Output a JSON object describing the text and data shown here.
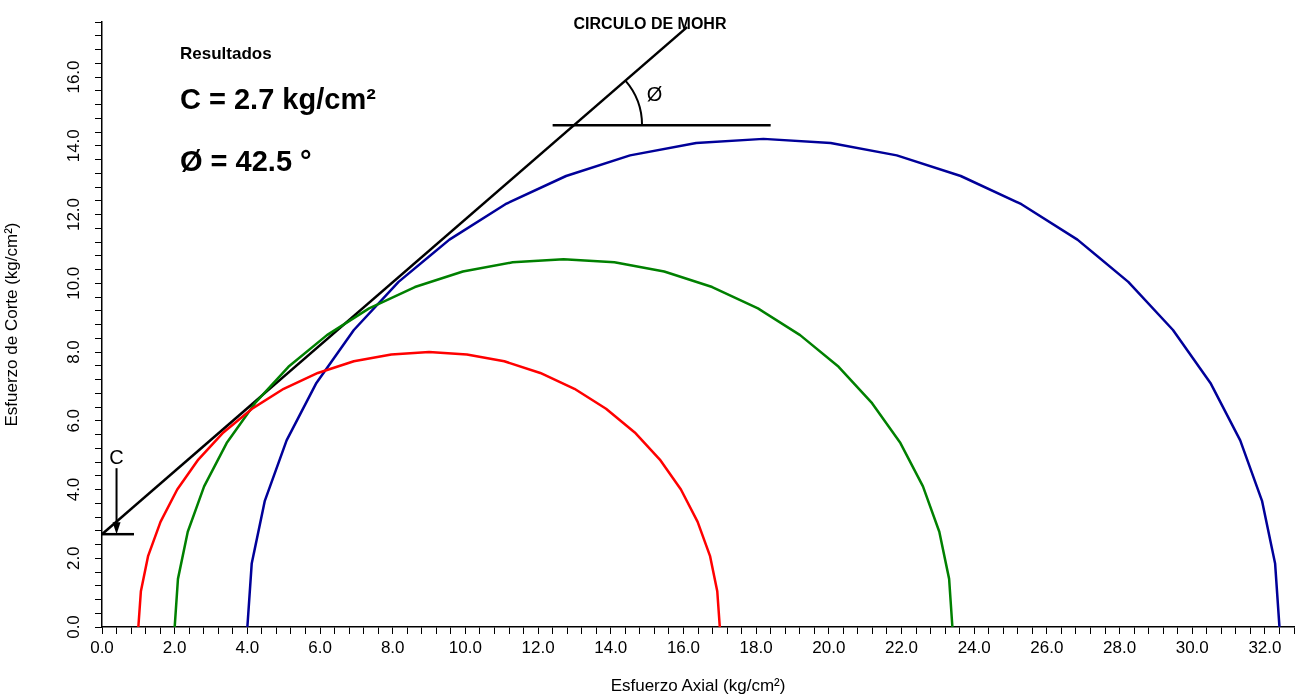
{
  "chart_data": {
    "type": "line",
    "title": "CIRCULO DE MOHR",
    "xlabel": "Esfuerzo Axial (kg/cm²)",
    "ylabel": "Esfuerzo de Corte (kg/cm²)",
    "xlim": [
      0,
      32.8
    ],
    "ylim": [
      0,
      17.6
    ],
    "xticks": [
      {
        "value": 0,
        "label": "0.0"
      },
      {
        "value": 0.4,
        "label": null
      },
      {
        "value": 0.8,
        "label": null
      },
      {
        "value": 1.2,
        "label": null
      },
      {
        "value": 1.6,
        "label": null
      },
      {
        "value": 2,
        "label": "2.0"
      },
      {
        "value": 2.4,
        "label": null
      },
      {
        "value": 2.8,
        "label": null
      },
      {
        "value": 3.2,
        "label": null
      },
      {
        "value": 3.6,
        "label": null
      },
      {
        "value": 4,
        "label": "4.0"
      },
      {
        "value": 4.4,
        "label": null
      },
      {
        "value": 4.8,
        "label": null
      },
      {
        "value": 5.2,
        "label": null
      },
      {
        "value": 5.6,
        "label": null
      },
      {
        "value": 6,
        "label": "6.0"
      },
      {
        "value": 6.4,
        "label": null
      },
      {
        "value": 6.8,
        "label": null
      },
      {
        "value": 7.2,
        "label": null
      },
      {
        "value": 7.6,
        "label": null
      },
      {
        "value": 8,
        "label": "8.0"
      },
      {
        "value": 8.4,
        "label": null
      },
      {
        "value": 8.8,
        "label": null
      },
      {
        "value": 9.2,
        "label": null
      },
      {
        "value": 9.6,
        "label": null
      },
      {
        "value": 10,
        "label": "10.0"
      },
      {
        "value": 10.4,
        "label": null
      },
      {
        "value": 10.8,
        "label": null
      },
      {
        "value": 11.2,
        "label": null
      },
      {
        "value": 11.6,
        "label": null
      },
      {
        "value": 12,
        "label": "12.0"
      },
      {
        "value": 12.4,
        "label": null
      },
      {
        "value": 12.8,
        "label": null
      },
      {
        "value": 13.2,
        "label": null
      },
      {
        "value": 13.6,
        "label": null
      },
      {
        "value": 14,
        "label": "14.0"
      },
      {
        "value": 14.4,
        "label": null
      },
      {
        "value": 14.8,
        "label": null
      },
      {
        "value": 15.2,
        "label": null
      },
      {
        "value": 15.6,
        "label": null
      },
      {
        "value": 16,
        "label": "16.0"
      },
      {
        "value": 16.4,
        "label": null
      },
      {
        "value": 16.8,
        "label": null
      },
      {
        "value": 17.2,
        "label": null
      },
      {
        "value": 17.6,
        "label": null
      },
      {
        "value": 18,
        "label": "18.0"
      },
      {
        "value": 18.4,
        "label": null
      },
      {
        "value": 18.8,
        "label": null
      },
      {
        "value": 19.2,
        "label": null
      },
      {
        "value": 19.6,
        "label": null
      },
      {
        "value": 20,
        "label": "20.0"
      },
      {
        "value": 20.4,
        "label": null
      },
      {
        "value": 20.8,
        "label": null
      },
      {
        "value": 21.2,
        "label": null
      },
      {
        "value": 21.6,
        "label": null
      },
      {
        "value": 22,
        "label": "22.0"
      },
      {
        "value": 22.4,
        "label": null
      },
      {
        "value": 22.8,
        "label": null
      },
      {
        "value": 23.2,
        "label": null
      },
      {
        "value": 23.6,
        "label": null
      },
      {
        "value": 24,
        "label": "24.0"
      },
      {
        "value": 24.4,
        "label": null
      },
      {
        "value": 24.8,
        "label": null
      },
      {
        "value": 25.2,
        "label": null
      },
      {
        "value": 25.6,
        "label": null
      },
      {
        "value": 26,
        "label": "26.0"
      },
      {
        "value": 26.4,
        "label": null
      },
      {
        "value": 26.8,
        "label": null
      },
      {
        "value": 27.2,
        "label": null
      },
      {
        "value": 27.6,
        "label": null
      },
      {
        "value": 28,
        "label": "28.0"
      },
      {
        "value": 28.4,
        "label": null
      },
      {
        "value": 28.8,
        "label": null
      },
      {
        "value": 29.2,
        "label": null
      },
      {
        "value": 29.6,
        "label": null
      },
      {
        "value": 30,
        "label": "30.0"
      },
      {
        "value": 30.4,
        "label": null
      },
      {
        "value": 30.8,
        "label": null
      },
      {
        "value": 31.2,
        "label": null
      },
      {
        "value": 31.6,
        "label": null
      },
      {
        "value": 32,
        "label": "32.0"
      },
      {
        "value": 32.4,
        "label": null
      },
      {
        "value": 32.8,
        "label": null
      }
    ],
    "yticks": [
      {
        "value": 0,
        "label": "0.0"
      },
      {
        "value": 0.4,
        "label": null
      },
      {
        "value": 0.8,
        "label": null
      },
      {
        "value": 1.2,
        "label": null
      },
      {
        "value": 1.6,
        "label": null
      },
      {
        "value": 2,
        "label": "2.0"
      },
      {
        "value": 2.4,
        "label": null
      },
      {
        "value": 2.8,
        "label": null
      },
      {
        "value": 3.2,
        "label": null
      },
      {
        "value": 3.6,
        "label": null
      },
      {
        "value": 4,
        "label": "4.0"
      },
      {
        "value": 4.4,
        "label": null
      },
      {
        "value": 4.8,
        "label": null
      },
      {
        "value": 5.2,
        "label": null
      },
      {
        "value": 5.6,
        "label": null
      },
      {
        "value": 6,
        "label": "6.0"
      },
      {
        "value": 6.4,
        "label": null
      },
      {
        "value": 6.8,
        "label": null
      },
      {
        "value": 7.2,
        "label": null
      },
      {
        "value": 7.6,
        "label": null
      },
      {
        "value": 8,
        "label": "8.0"
      },
      {
        "value": 8.4,
        "label": null
      },
      {
        "value": 8.8,
        "label": null
      },
      {
        "value": 9.2,
        "label": null
      },
      {
        "value": 9.6,
        "label": null
      },
      {
        "value": 10,
        "label": "10.0"
      },
      {
        "value": 10.4,
        "label": null
      },
      {
        "value": 10.8,
        "label": null
      },
      {
        "value": 11.2,
        "label": null
      },
      {
        "value": 11.6,
        "label": null
      },
      {
        "value": 12,
        "label": "12.0"
      },
      {
        "value": 12.4,
        "label": null
      },
      {
        "value": 12.8,
        "label": null
      },
      {
        "value": 13.2,
        "label": null
      },
      {
        "value": 13.6,
        "label": null
      },
      {
        "value": 14,
        "label": "14.0"
      },
      {
        "value": 14.4,
        "label": null
      },
      {
        "value": 14.8,
        "label": null
      },
      {
        "value": 15.2,
        "label": null
      },
      {
        "value": 15.6,
        "label": null
      },
      {
        "value": 16,
        "label": "16.0"
      },
      {
        "value": 16.4,
        "label": null
      },
      {
        "value": 16.8,
        "label": null
      },
      {
        "value": 17.2,
        "label": null
      },
      {
        "value": 17.6,
        "label": null
      }
    ],
    "grid": false,
    "legend": false,
    "marker": "none",
    "line_style": "solid",
    "annotations": [
      "Resultados",
      "C = 2.7 kg/cm²",
      "Ø = 42.5 °",
      {
        "text": "C",
        "x": 0.4,
        "y": 2.7
      },
      "Ø"
    ],
    "series": [
      {
        "color": "#ff0000",
        "x": [
          17,
          16.93,
          16.73,
          16.39,
          15.93,
          15.35,
          14.66,
          13.87,
          13,
          12.06,
          11.07,
          10.04,
          9,
          7.96,
          6.93,
          5.94,
          5,
          4.13,
          3.34,
          2.65,
          2.07,
          1.61,
          1.27,
          1.07,
          1
        ],
        "values": [
          0,
          1.04,
          2.07,
          3.06,
          4,
          4.87,
          5.66,
          6.35,
          6.93,
          7.39,
          7.73,
          7.93,
          8,
          7.93,
          7.73,
          7.39,
          6.93,
          6.35,
          5.66,
          4.87,
          4,
          3.06,
          2.07,
          1.04,
          0
        ]
      },
      {
        "color": "#008000",
        "x": [
          23.4,
          23.31,
          23.04,
          22.59,
          21.97,
          21.19,
          20.27,
          19.21,
          18.05,
          16.79,
          15.47,
          14.1,
          12.7,
          11.3,
          9.93,
          8.61,
          7.35,
          6.19,
          5.13,
          4.21,
          3.43,
          2.81,
          2.36,
          2.09,
          2
        ],
        "values": [
          0,
          1.4,
          2.77,
          4.09,
          5.35,
          6.51,
          7.57,
          8.49,
          9.27,
          9.89,
          10.34,
          10.61,
          10.7,
          10.61,
          10.34,
          9.89,
          9.27,
          8.49,
          7.57,
          6.51,
          5.35,
          4.09,
          2.77,
          1.4,
          0
        ]
      },
      {
        "color": "#000099",
        "x": [
          32.4,
          32.28,
          31.92,
          31.32,
          30.5,
          29.47,
          28.24,
          26.84,
          25.3,
          23.63,
          21.87,
          20.05,
          18.2,
          16.35,
          14.53,
          12.77,
          11.1,
          9.56,
          8.16,
          6.93,
          5.9,
          5.08,
          4.48,
          4.12,
          4
        ],
        "values": [
          0,
          1.85,
          3.67,
          5.43,
          7.1,
          8.64,
          10.04,
          11.27,
          12.3,
          13.12,
          13.72,
          14.08,
          14.2,
          14.08,
          13.72,
          13.12,
          12.3,
          11.27,
          10.04,
          8.64,
          7.1,
          5.43,
          3.67,
          1.85,
          0
        ]
      },
      {
        "color": "#000000",
        "x": [
          0,
          16.1
        ],
        "values": [
          2.7,
          17.45
        ]
      },
      {
        "color": "#000000",
        "x": [
          0,
          0.88
        ],
        "values": [
          2.7,
          2.7
        ]
      },
      {
        "color": "#000000",
        "x": [
          12.4,
          18.4
        ],
        "values": [
          14.6,
          14.6
        ]
      }
    ]
  }
}
